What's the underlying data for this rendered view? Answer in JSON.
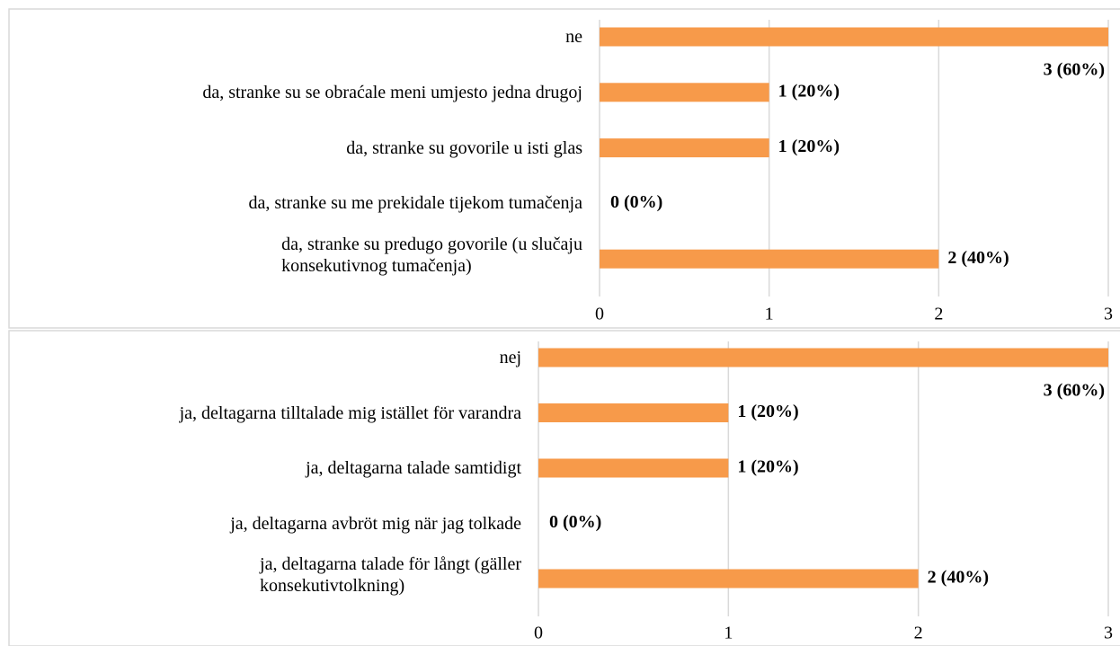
{
  "chart_data": [
    {
      "type": "bar",
      "orientation": "horizontal",
      "categories": [
        "ne",
        "da, stranke su se obraćale meni umjesto jedna drugoj",
        "da, stranke su govorile u isti glas",
        "da, stranke su me prekidale tijekom tumačenja",
        "da, stranke su predugo govorile (u slučaju\nkonsekutivnog tumačenja)"
      ],
      "values": [
        3,
        1,
        1,
        0,
        2
      ],
      "value_labels": [
        "3 (60%)",
        "1 (20%)",
        "1 (20%)",
        "0 (0%)",
        "2 (40%)"
      ],
      "color": "#f79a4a",
      "xlim": [
        0,
        3
      ],
      "xticks": [
        0,
        1,
        2,
        3
      ],
      "grid": true
    },
    {
      "type": "bar",
      "orientation": "horizontal",
      "categories": [
        "nej",
        "ja, deltagarna tilltalade mig istället för varandra",
        "ja, deltagarna talade samtidigt",
        "ja, deltagarna avbröt mig när jag tolkade",
        "ja, deltagarna talade för långt (gäller\nkonsekutivtolkning)"
      ],
      "values": [
        3,
        1,
        1,
        0,
        2
      ],
      "value_labels": [
        "3 (60%)",
        "1 (20%)",
        "1 (20%)",
        "0 (0%)",
        "2 (40%)"
      ],
      "color": "#f79a4a",
      "xlim": [
        0,
        3
      ],
      "xticks": [
        0,
        1,
        2,
        3
      ],
      "grid": true
    }
  ]
}
